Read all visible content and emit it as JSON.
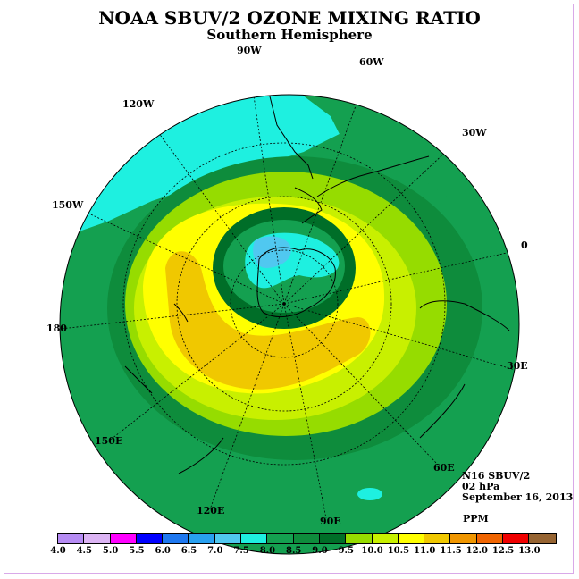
{
  "header": {
    "title": "NOAA SBUV/2 OZONE MIXING RATIO",
    "subtitle": "Southern Hemisphere"
  },
  "map": {
    "projection": "south polar stereographic",
    "longitude_labels": [
      "90W",
      "60W",
      "30W",
      "0",
      "30E",
      "60E",
      "90E",
      "120E",
      "150E",
      "180",
      "150W",
      "120W"
    ]
  },
  "info": {
    "satellite": "N16 SBUV/2",
    "level": "02 hPa",
    "date": "September 16, 2013",
    "units": "PPM"
  },
  "colorbar": {
    "ticks": [
      "4.0",
      "4.5",
      "5.0",
      "5.5",
      "6.0",
      "6.5",
      "7.0",
      "7.5",
      "8.0",
      "8.5",
      "9.0",
      "9.5",
      "10.0",
      "10.5",
      "11.0",
      "11.5",
      "12.0",
      "12.5",
      "13.0"
    ],
    "colors": [
      "#b68cf4",
      "#dcb4f4",
      "#ff00ff",
      "#0000ff",
      "#1e78f0",
      "#28a0f0",
      "#50c8f0",
      "#1ef0e0",
      "#14a050",
      "#0e8c3c",
      "#006e28",
      "#96dc00",
      "#c8f000",
      "#ffff00",
      "#f0c800",
      "#f09600",
      "#f06400",
      "#f00000",
      "#966432"
    ]
  }
}
